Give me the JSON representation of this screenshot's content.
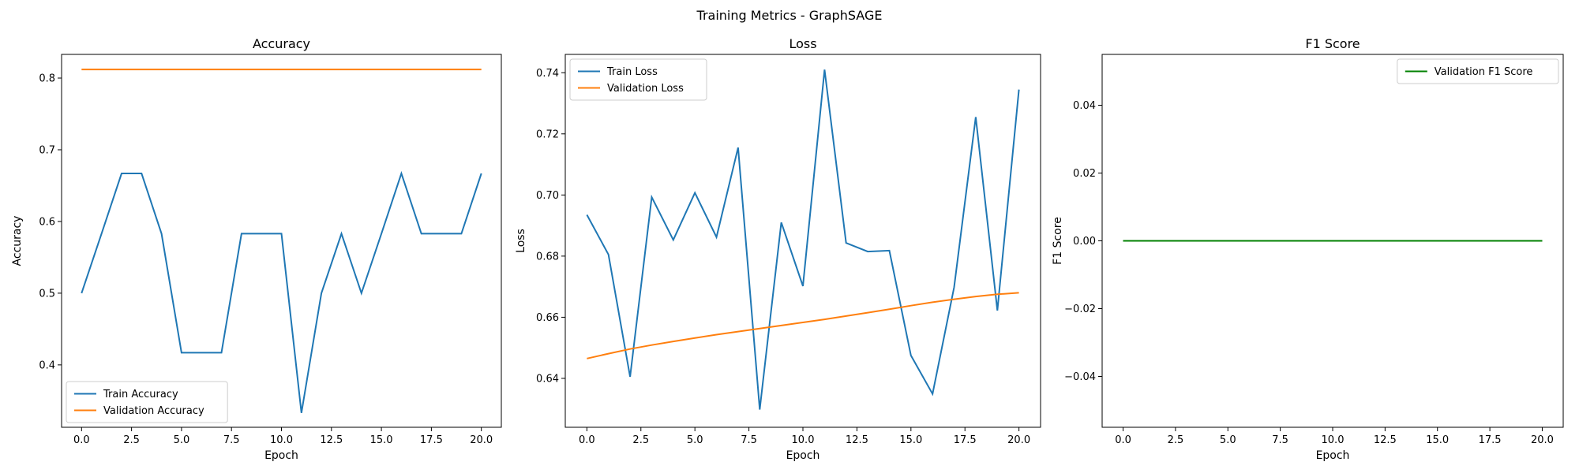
{
  "suptitle": "Training Metrics - GraphSAGE",
  "chart_data": [
    {
      "type": "line",
      "title": "Accuracy",
      "xlabel": "Epoch",
      "ylabel": "Accuracy",
      "xlim": [
        -1,
        21
      ],
      "ylim": [
        0.313,
        0.833
      ],
      "xticks": [
        0,
        2.5,
        5,
        7.5,
        10,
        12.5,
        15,
        17.5,
        20
      ],
      "xtick_labels": [
        "0.0",
        "2.5",
        "5.0",
        "7.5",
        "10.0",
        "12.5",
        "15.0",
        "17.5",
        "20.0"
      ],
      "yticks": [
        0.4,
        0.5,
        0.6,
        0.7,
        0.8
      ],
      "ytick_labels": [
        "0.4",
        "0.5",
        "0.6",
        "0.7",
        "0.8"
      ],
      "legend_position": "lower-left",
      "grid": false,
      "x": [
        0,
        1,
        2,
        3,
        4,
        5,
        6,
        7,
        8,
        9,
        10,
        11,
        12,
        13,
        14,
        15,
        16,
        17,
        18,
        19,
        20
      ],
      "series": [
        {
          "name": "Train Accuracy",
          "color": "#1f77b4",
          "values": [
            0.5,
            0.583,
            0.667,
            0.667,
            0.583,
            0.417,
            0.417,
            0.417,
            0.583,
            0.583,
            0.583,
            0.333,
            0.5,
            0.583,
            0.5,
            0.583,
            0.667,
            0.583,
            0.583,
            0.583,
            0.667
          ]
        },
        {
          "name": "Validation Accuracy",
          "color": "#ff7f0e",
          "values": [
            0.812,
            0.812,
            0.812,
            0.812,
            0.812,
            0.812,
            0.812,
            0.812,
            0.812,
            0.812,
            0.812,
            0.812,
            0.812,
            0.812,
            0.812,
            0.812,
            0.812,
            0.812,
            0.812,
            0.812,
            0.812
          ]
        }
      ]
    },
    {
      "type": "line",
      "title": "Loss",
      "xlabel": "Epoch",
      "ylabel": "Loss",
      "xlim": [
        -1,
        21
      ],
      "ylim": [
        0.624,
        0.746
      ],
      "xticks": [
        0,
        2.5,
        5,
        7.5,
        10,
        12.5,
        15,
        17.5,
        20
      ],
      "xtick_labels": [
        "0.0",
        "2.5",
        "5.0",
        "7.5",
        "10.0",
        "12.5",
        "15.0",
        "17.5",
        "20.0"
      ],
      "yticks": [
        0.64,
        0.66,
        0.68,
        0.7,
        0.72,
        0.74
      ],
      "ytick_labels": [
        "0.64",
        "0.66",
        "0.68",
        "0.70",
        "0.72",
        "0.74"
      ],
      "legend_position": "upper-left",
      "grid": false,
      "x": [
        0,
        1,
        2,
        3,
        4,
        5,
        6,
        7,
        8,
        9,
        10,
        11,
        12,
        13,
        14,
        15,
        16,
        17,
        18,
        19,
        20
      ],
      "series": [
        {
          "name": "Train Loss",
          "color": "#1f77b4",
          "values": [
            0.6935,
            0.6805,
            0.6405,
            0.6993,
            0.6853,
            0.7007,
            0.6862,
            0.7155,
            0.6298,
            0.691,
            0.6702,
            0.741,
            0.6843,
            0.6815,
            0.6818,
            0.6475,
            0.6349,
            0.6698,
            0.7255,
            0.6622,
            0.7345
          ]
        },
        {
          "name": "Validation Loss",
          "color": "#ff7f0e",
          "values": [
            0.6465,
            0.6481,
            0.6496,
            0.6509,
            0.6521,
            0.6532,
            0.6543,
            0.6553,
            0.6563,
            0.6573,
            0.6583,
            0.6593,
            0.6604,
            0.6615,
            0.6626,
            0.6638,
            0.6649,
            0.6659,
            0.6668,
            0.6675,
            0.668
          ]
        }
      ]
    },
    {
      "type": "line",
      "title": "F1 Score",
      "xlabel": "Epoch",
      "ylabel": "F1 Score",
      "xlim": [
        -1,
        21
      ],
      "ylim": [
        -0.055,
        0.055
      ],
      "xticks": [
        0,
        2.5,
        5,
        7.5,
        10,
        12.5,
        15,
        17.5,
        20
      ],
      "xtick_labels": [
        "0.0",
        "2.5",
        "5.0",
        "7.5",
        "10.0",
        "12.5",
        "15.0",
        "17.5",
        "20.0"
      ],
      "yticks": [
        -0.04,
        -0.02,
        0.0,
        0.02,
        0.04
      ],
      "ytick_labels": [
        "−0.04",
        "−0.02",
        "0.00",
        "0.02",
        "0.04"
      ],
      "legend_position": "upper-right",
      "grid": false,
      "x": [
        0,
        1,
        2,
        3,
        4,
        5,
        6,
        7,
        8,
        9,
        10,
        11,
        12,
        13,
        14,
        15,
        16,
        17,
        18,
        19,
        20
      ],
      "series": [
        {
          "name": "Validation F1 Score",
          "color": "#008000",
          "values": [
            0,
            0,
            0,
            0,
            0,
            0,
            0,
            0,
            0,
            0,
            0,
            0,
            0,
            0,
            0,
            0,
            0,
            0,
            0,
            0,
            0
          ]
        }
      ]
    }
  ]
}
